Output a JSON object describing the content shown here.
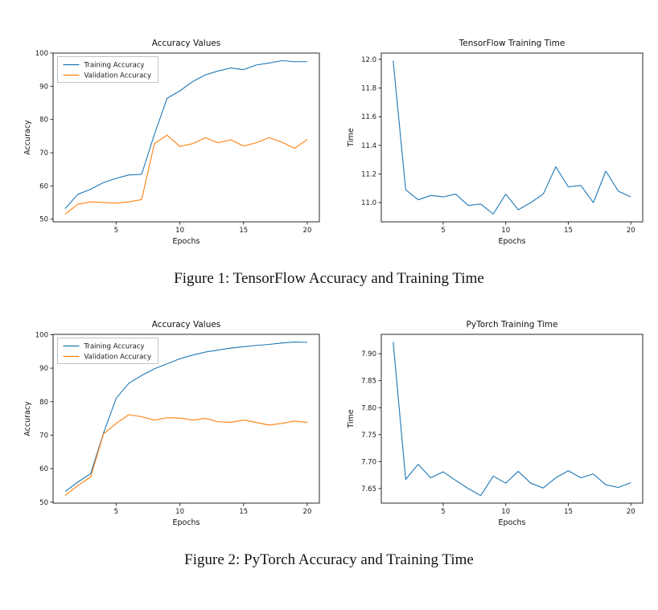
{
  "page": {
    "background": "#ffffff"
  },
  "colors": {
    "training_line": "#1f77b4",
    "validation_line": "#ff7f0e",
    "axis": "#2a2a2a"
  },
  "figures": [
    {
      "caption": "Figure 1: TensorFlow Accuracy and Training Time"
    },
    {
      "caption": "Figure 2: PyTorch Accuracy and Training Time"
    }
  ],
  "chart_data": [
    {
      "type": "line",
      "name": "tensorflow-accuracy-chart",
      "title": "Accuracy Values",
      "xlabel": "Epochs",
      "ylabel": "Accuracy",
      "legend_position": "upper left",
      "x": [
        1,
        2,
        3,
        4,
        5,
        6,
        7,
        8,
        9,
        10,
        11,
        12,
        13,
        14,
        15,
        16,
        17,
        18,
        19,
        20
      ],
      "xlim": [
        0.05,
        20.95
      ],
      "ylim": [
        49.2,
        100.0
      ],
      "xtick_values": [
        5,
        10,
        15,
        20
      ],
      "xtick_labels": [
        "5",
        "10",
        "15",
        "20"
      ],
      "ytick_values": [
        50,
        60,
        70,
        80,
        90,
        100
      ],
      "ytick_labels": [
        "50",
        "60",
        "70",
        "80",
        "90",
        "100"
      ],
      "series": [
        {
          "name": "Training Accuracy",
          "color": "#1f77b4",
          "values": [
            53.2,
            57.5,
            59.0,
            61.0,
            62.3,
            63.3,
            63.5,
            75.5,
            86.4,
            88.6,
            91.4,
            93.4,
            94.6,
            95.5,
            95.0,
            96.4,
            97.0,
            97.7,
            97.4,
            97.4
          ]
        },
        {
          "name": "Validation Accuracy",
          "color": "#ff7f0e",
          "values": [
            51.5,
            54.5,
            55.2,
            55.0,
            54.8,
            55.2,
            55.9,
            72.7,
            75.3,
            71.9,
            72.7,
            74.5,
            73.0,
            73.9,
            72.0,
            73.0,
            74.5,
            73.2,
            71.3,
            74.0
          ]
        }
      ]
    },
    {
      "type": "line",
      "name": "tensorflow-training-time-chart",
      "title": "TensorFlow Training Time",
      "xlabel": "Epochs",
      "ylabel": "Time",
      "legend_position": null,
      "x": [
        1,
        2,
        3,
        4,
        5,
        6,
        7,
        8,
        9,
        10,
        11,
        12,
        13,
        14,
        15,
        16,
        17,
        18,
        19,
        20
      ],
      "xlim": [
        0.05,
        20.95
      ],
      "ylim": [
        10.866,
        12.044
      ],
      "xtick_values": [
        5,
        10,
        15,
        20
      ],
      "xtick_labels": [
        "5",
        "10",
        "15",
        "20"
      ],
      "ytick_values": [
        11.0,
        11.2,
        11.4,
        11.6,
        11.8,
        12.0
      ],
      "ytick_labels": [
        "11.0",
        "11.2",
        "11.4",
        "11.6",
        "11.8",
        "12.0"
      ],
      "series": [
        {
          "name": "Training Time",
          "color": "#1f77b4",
          "values": [
            11.99,
            11.09,
            11.02,
            11.05,
            11.04,
            11.06,
            10.98,
            10.99,
            10.92,
            11.06,
            10.95,
            11.0,
            11.06,
            11.25,
            11.11,
            11.12,
            11.0,
            11.22,
            11.08,
            11.04
          ]
        }
      ]
    },
    {
      "type": "line",
      "name": "pytorch-accuracy-chart",
      "title": "Accuracy Values",
      "xlabel": "Epochs",
      "ylabel": "Accuracy",
      "legend_position": "upper left",
      "x": [
        1,
        2,
        3,
        4,
        5,
        6,
        7,
        8,
        9,
        10,
        11,
        12,
        13,
        14,
        15,
        16,
        17,
        18,
        19,
        20
      ],
      "xlim": [
        0.05,
        20.95
      ],
      "ylim": [
        49.7,
        100.1
      ],
      "xtick_values": [
        5,
        10,
        15,
        20
      ],
      "xtick_labels": [
        "5",
        "10",
        "15",
        "20"
      ],
      "ytick_values": [
        50,
        60,
        70,
        80,
        90,
        100
      ],
      "ytick_labels": [
        "50",
        "60",
        "70",
        "80",
        "90",
        "100"
      ],
      "series": [
        {
          "name": "Training Accuracy",
          "color": "#1f77b4",
          "values": [
            53.2,
            56.0,
            58.5,
            70.5,
            81.0,
            85.5,
            87.8,
            89.8,
            91.3,
            92.8,
            93.9,
            94.8,
            95.4,
            96.0,
            96.4,
            96.8,
            97.1,
            97.5,
            97.8,
            97.7
          ]
        },
        {
          "name": "Validation Accuracy",
          "color": "#ff7f0e",
          "values": [
            52.0,
            55.0,
            57.5,
            70.3,
            73.5,
            76.1,
            75.5,
            74.5,
            75.2,
            75.1,
            74.5,
            75.0,
            74.0,
            73.8,
            74.5,
            73.8,
            73.0,
            73.5,
            74.2,
            73.8
          ]
        }
      ]
    },
    {
      "type": "line",
      "name": "pytorch-training-time-chart",
      "title": "PyTorch Training Time",
      "xlabel": "Epochs",
      "ylabel": "Time",
      "legend_position": null,
      "x": [
        1,
        2,
        3,
        4,
        5,
        6,
        7,
        8,
        9,
        10,
        11,
        12,
        13,
        14,
        15,
        16,
        17,
        18,
        19,
        20
      ],
      "xlim": [
        0.05,
        20.95
      ],
      "ylim": [
        7.623,
        7.936
      ],
      "xtick_values": [
        5,
        10,
        15,
        20
      ],
      "xtick_labels": [
        "5",
        "10",
        "15",
        "20"
      ],
      "ytick_values": [
        7.65,
        7.7,
        7.75,
        7.8,
        7.85,
        7.9
      ],
      "ytick_labels": [
        "7.65",
        "7.70",
        "7.75",
        "7.80",
        "7.85",
        "7.90"
      ],
      "series": [
        {
          "name": "Training Time",
          "color": "#1f77b4",
          "values": [
            7.922,
            7.667,
            7.695,
            7.67,
            7.681,
            7.665,
            7.65,
            7.637,
            7.673,
            7.66,
            7.682,
            7.66,
            7.651,
            7.67,
            7.683,
            7.67,
            7.677,
            7.657,
            7.652,
            7.661
          ]
        }
      ]
    }
  ]
}
